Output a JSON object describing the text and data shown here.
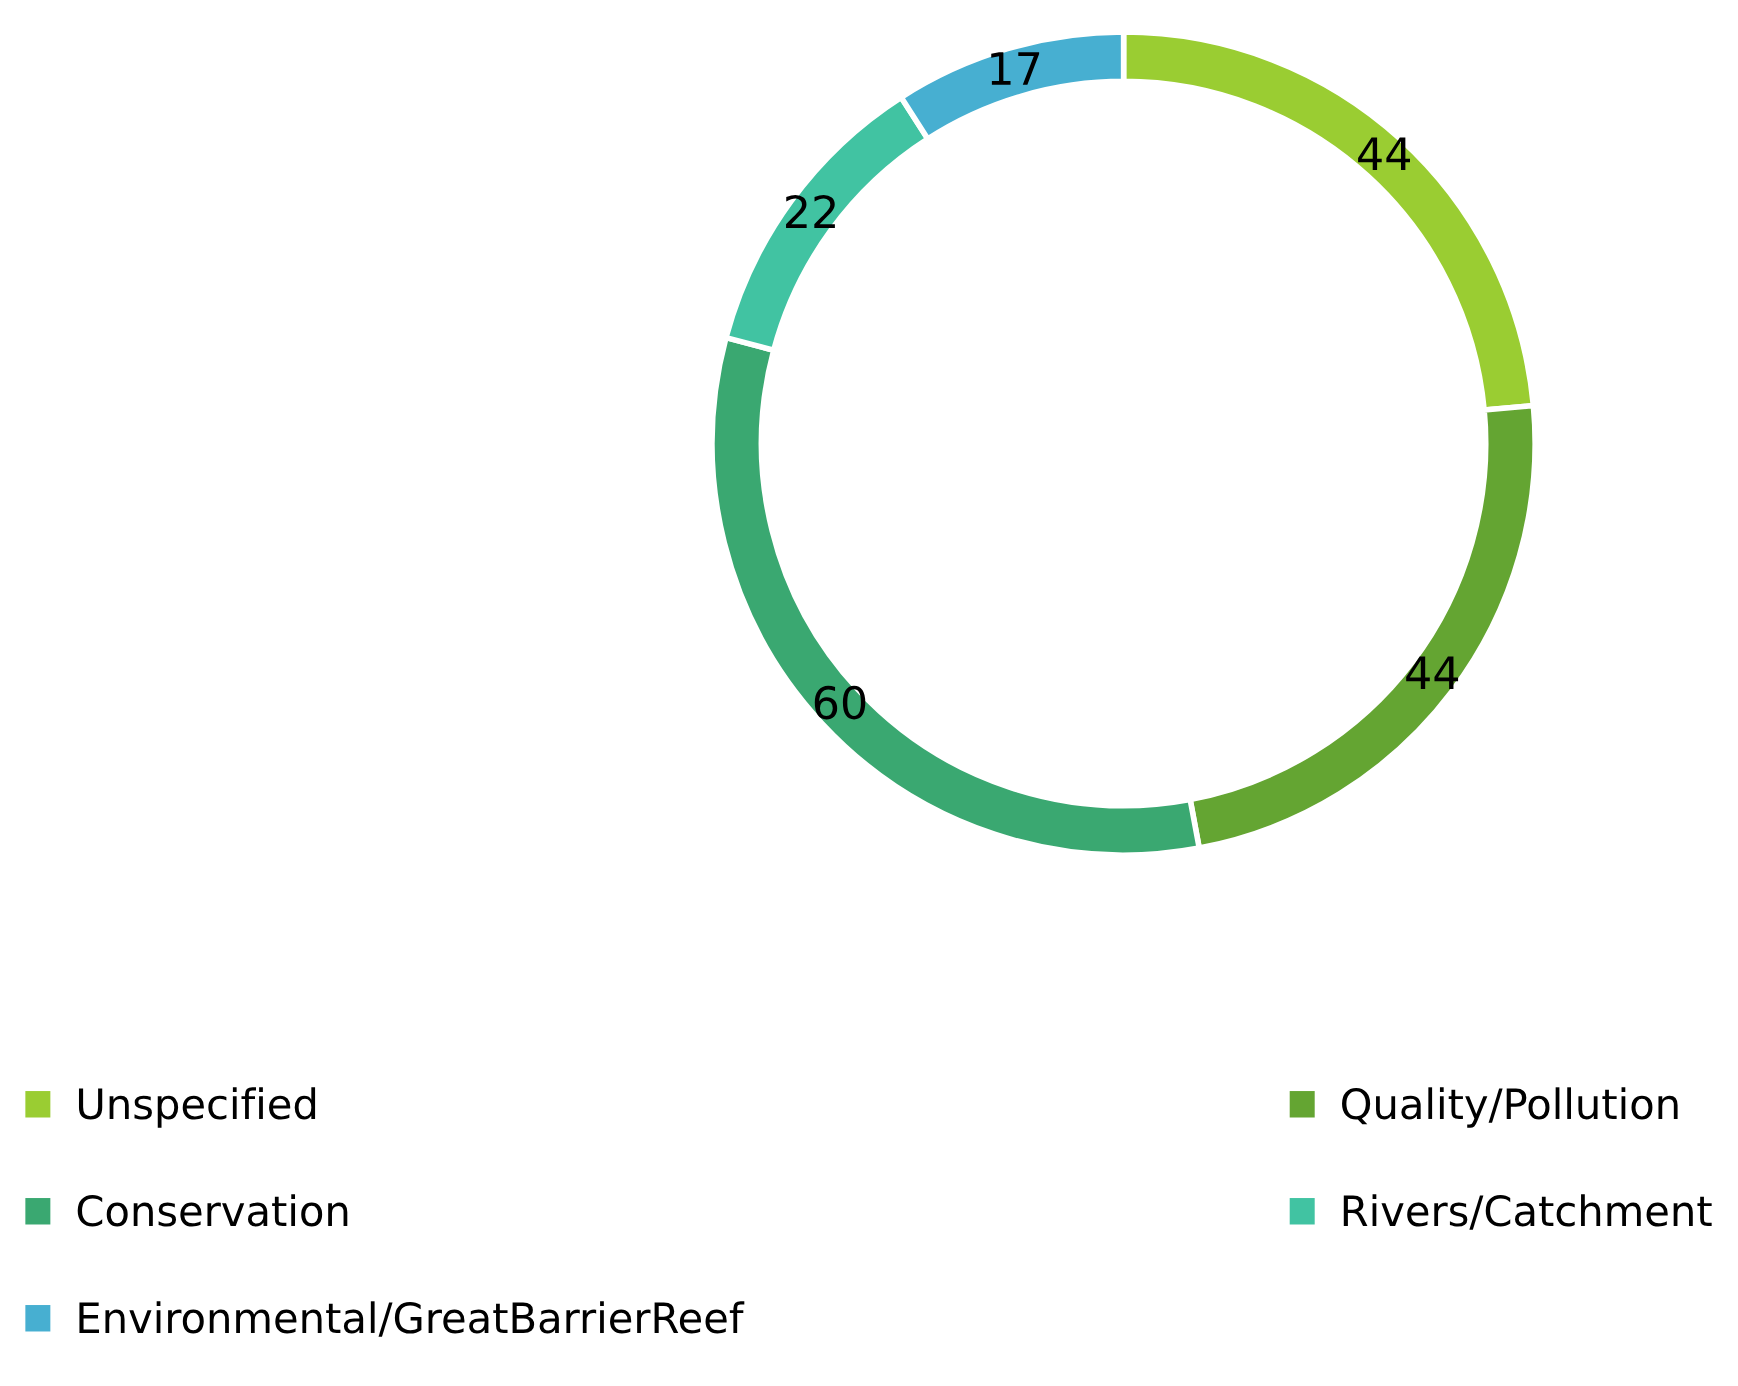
{
  "chart_data": {
    "type": "donut",
    "categories": [
      "Unspecified",
      "Quality/Pollution",
      "Conservation",
      "Rivers/Catchment",
      "Environmental/GreatBarrierReef"
    ],
    "values": [
      44,
      44,
      60,
      22,
      17
    ],
    "colors": [
      "#9acd32",
      "#64a532",
      "#3aa871",
      "#41c3a2",
      "#47afd1"
    ],
    "data_labels": true,
    "legend": "bottom"
  }
}
